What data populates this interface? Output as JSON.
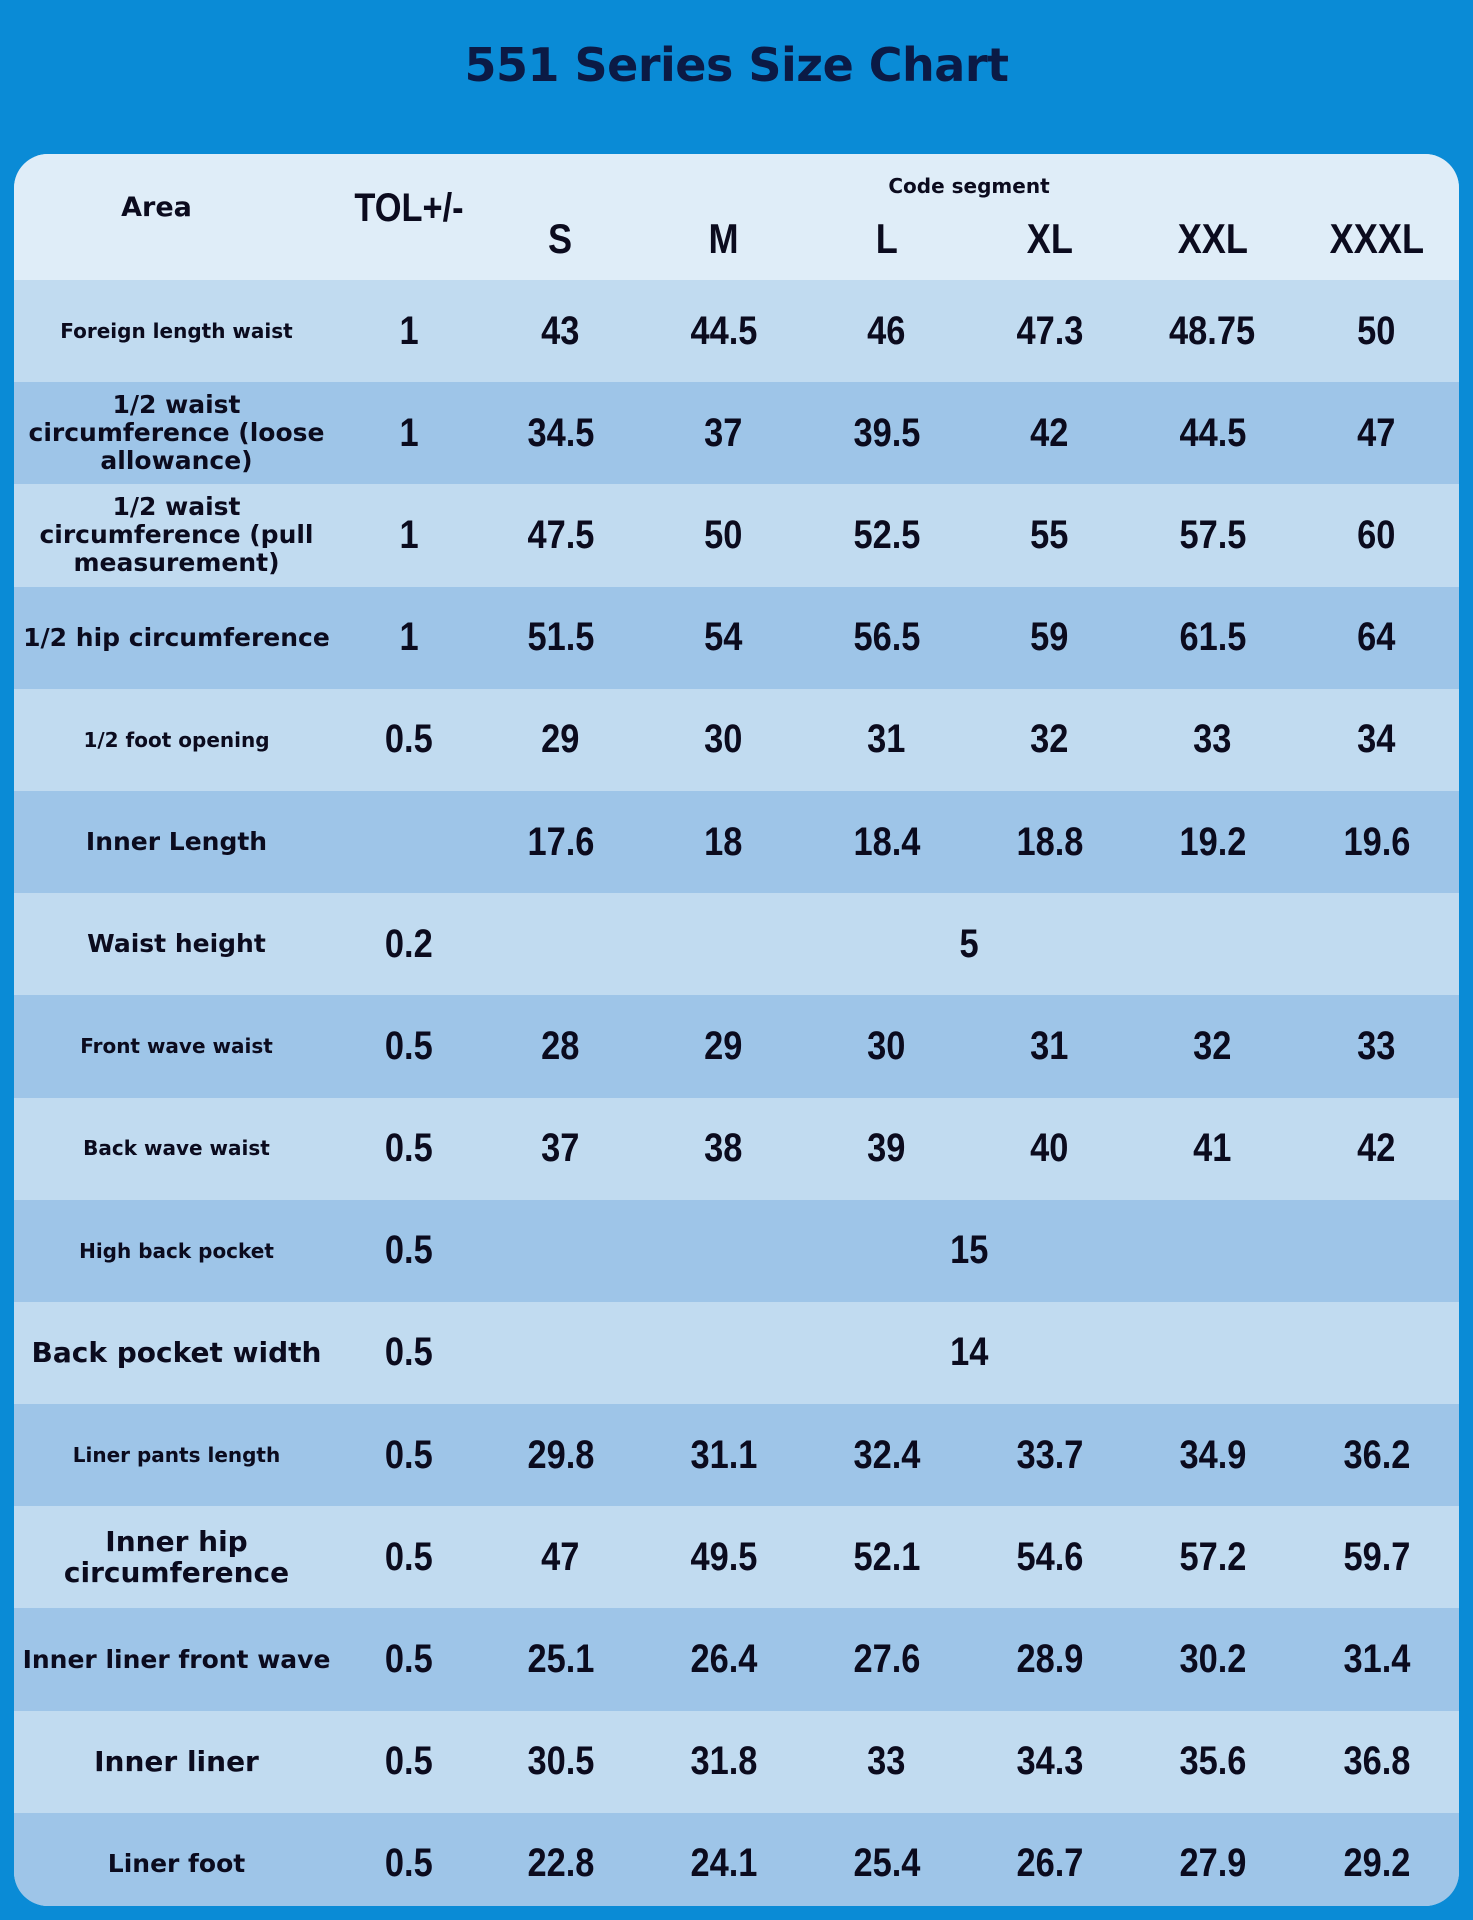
{
  "title": "551 Series Size Chart",
  "colors": {
    "background": "#0a8bd6",
    "header_row": "#dfedf8",
    "row_light": "#c1dbf0",
    "row_dark": "#9ec5e8",
    "text": "#0b0b1e"
  },
  "table": {
    "area_header": "Area",
    "tol_header": "TOL+/-",
    "group_header": "Code segment",
    "sizes": [
      "S",
      "M",
      "L",
      "XL",
      "XXL",
      "XXXL"
    ],
    "rows": [
      {
        "area": "Foreign length waist",
        "tol": "1",
        "values": [
          "43",
          "44.5",
          "46",
          "47.3",
          "48.75",
          "50"
        ]
      },
      {
        "area": "1/2 waist circumference (loose allowance)",
        "tol": "1",
        "values": [
          "34.5",
          "37",
          "39.5",
          "42",
          "44.5",
          "47"
        ]
      },
      {
        "area": "1/2 waist circumference (pull measurement)",
        "tol": "1",
        "values": [
          "47.5",
          "50",
          "52.5",
          "55",
          "57.5",
          "60"
        ]
      },
      {
        "area": "1/2 hip circumference",
        "tol": "1",
        "values": [
          "51.5",
          "54",
          "56.5",
          "59",
          "61.5",
          "64"
        ]
      },
      {
        "area": "1/2 foot opening",
        "tol": "0.5",
        "values": [
          "29",
          "30",
          "31",
          "32",
          "33",
          "34"
        ]
      },
      {
        "area": "Inner Length",
        "tol": "",
        "values": [
          "17.6",
          "18",
          "18.4",
          "18.8",
          "19.2",
          "19.6"
        ]
      },
      {
        "area": "Waist height",
        "tol": "0.2",
        "merged_value": "5"
      },
      {
        "area": "Front wave waist",
        "tol": "0.5",
        "values": [
          "28",
          "29",
          "30",
          "31",
          "32",
          "33"
        ]
      },
      {
        "area": "Back wave waist",
        "tol": "0.5",
        "values": [
          "37",
          "38",
          "39",
          "40",
          "41",
          "42"
        ]
      },
      {
        "area": "High back pocket",
        "tol": "0.5",
        "merged_value": "15"
      },
      {
        "area": "Back pocket width",
        "tol": "0.5",
        "merged_value": "14"
      },
      {
        "area": "Liner pants length",
        "tol": "0.5",
        "values": [
          "29.8",
          "31.1",
          "32.4",
          "33.7",
          "34.9",
          "36.2"
        ]
      },
      {
        "area": "Inner hip circumference",
        "tol": "0.5",
        "values": [
          "47",
          "49.5",
          "52.1",
          "54.6",
          "57.2",
          "59.7"
        ]
      },
      {
        "area": "Inner liner front wave",
        "tol": "0.5",
        "values": [
          "25.1",
          "26.4",
          "27.6",
          "28.9",
          "30.2",
          "31.4"
        ]
      },
      {
        "area": "Inner liner",
        "tol": "0.5",
        "values": [
          "30.5",
          "31.8",
          "33",
          "34.3",
          "35.6",
          "36.8"
        ]
      },
      {
        "area": "Liner foot",
        "tol": "0.5",
        "values": [
          "22.8",
          "24.1",
          "25.4",
          "26.7",
          "27.9",
          "29.2"
        ]
      }
    ]
  }
}
